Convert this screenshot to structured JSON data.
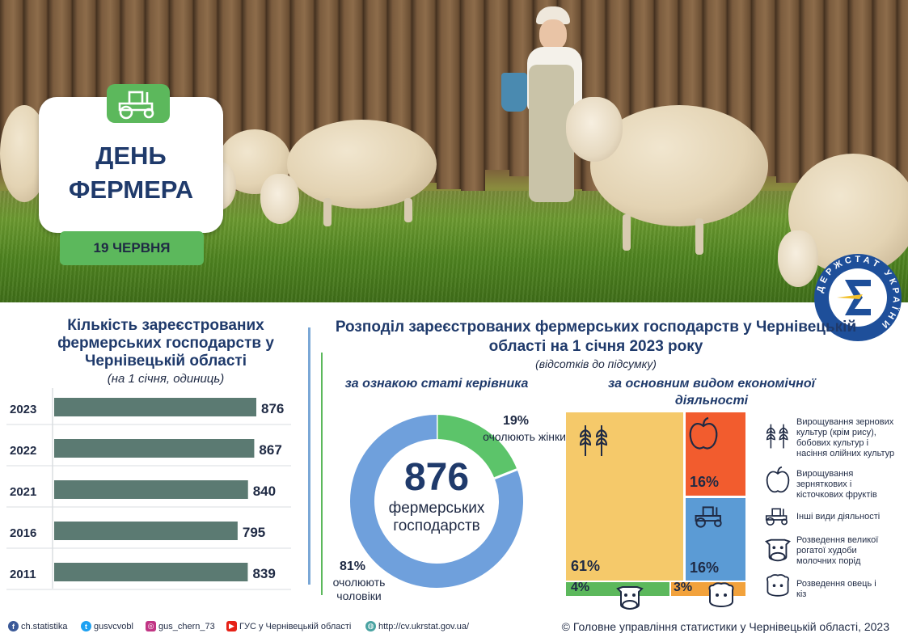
{
  "hero": {
    "title_line1": "ДЕНЬ",
    "title_line2": "ФЕРМЕРА",
    "date": "19 ЧЕРВНЯ",
    "icon": "tractor-icon"
  },
  "logo": {
    "text": "ДЕРЖСТАТ УКРАЇНИ",
    "icon": "sigma-logo"
  },
  "left": {
    "title": "Кількість зареєстрованих фермерських господарств у Чернівецькій області",
    "subtitle": "(на 1 січня, одиниць)"
  },
  "right": {
    "title": "Розподіл зареєстрованих фермерських господарств у Чернівецькій області на 1 січня 2023 року",
    "subtitle": "(відсотків до підсумку)",
    "donut_heading": "за ознакою статі керівника",
    "treemap_heading": "за основним видом економічної діяльності",
    "donut_center_value": "876",
    "donut_center_label": "фермерських господарств",
    "women_pct": "19%",
    "women_label": "очолюють жінки",
    "men_pct": "81%",
    "men_label": "очолюють чоловіки"
  },
  "legend": [
    {
      "icon": "wheat-icon",
      "text": "Вирощування зернових культур (крім рису), бобових культур і насіння олійних культур"
    },
    {
      "icon": "apple-icon",
      "text": "Вирощування зерняткових і кісточкових фруктів"
    },
    {
      "icon": "tractor-icon",
      "text": "Інші види діяльності"
    },
    {
      "icon": "cow-icon",
      "text": "Розведення великої рогатої худоби молочних порід"
    },
    {
      "icon": "sheep-icon",
      "text": "Розведення овець і кіз"
    }
  ],
  "footer": {
    "facebook": "ch.statistika",
    "twitter": "gusvcvobl",
    "instagram": "gus_chern_73",
    "youtube": "ГУС у Чернівецькій області",
    "web": "http://cv.ukrstat.gov.ua/",
    "copyright": "© Головне управління статистики у Чернівецькій області, 2023"
  },
  "colors": {
    "green": "#5cb85c",
    "bar": "#5b7a72",
    "donut_blue": "#6fa0dc",
    "donut_green": "#5cc46a",
    "tm_yellow": "#f5c96a",
    "tm_orange": "#f25c2e",
    "tm_blue": "#5b9bd5",
    "tm_green": "#5cb85c",
    "tm_lightorange": "#f2a23c"
  },
  "chart_data": [
    {
      "type": "bar",
      "orientation": "horizontal",
      "categories": [
        "2023",
        "2022",
        "2021",
        "2016",
        "2011"
      ],
      "values": [
        876,
        867,
        840,
        795,
        839
      ],
      "data_labels": [
        "876",
        "867",
        "840",
        "795",
        "839"
      ]
    },
    {
      "type": "pie",
      "variant": "donut",
      "slices": [
        {
          "label": "очолюють жінки",
          "value": 19
        },
        {
          "label": "очолюють чоловіки",
          "value": 81
        }
      ]
    },
    {
      "type": "treemap",
      "items": [
        {
          "category": "Вирощування зернових культур (крім рису), бобових культур і насіння олійних культур",
          "value": 61,
          "label": "61%"
        },
        {
          "category": "Вирощування зерняткових і кісточкових фруктів",
          "value": 16,
          "label": "16%"
        },
        {
          "category": "Інші види діяльності",
          "value": 16,
          "label": "16%"
        },
        {
          "category": "Розведення великої рогатої худоби молочних порід",
          "value": 4,
          "label": "4%"
        },
        {
          "category": "Розведення овець і кіз",
          "value": 3,
          "label": "3%"
        }
      ]
    }
  ]
}
